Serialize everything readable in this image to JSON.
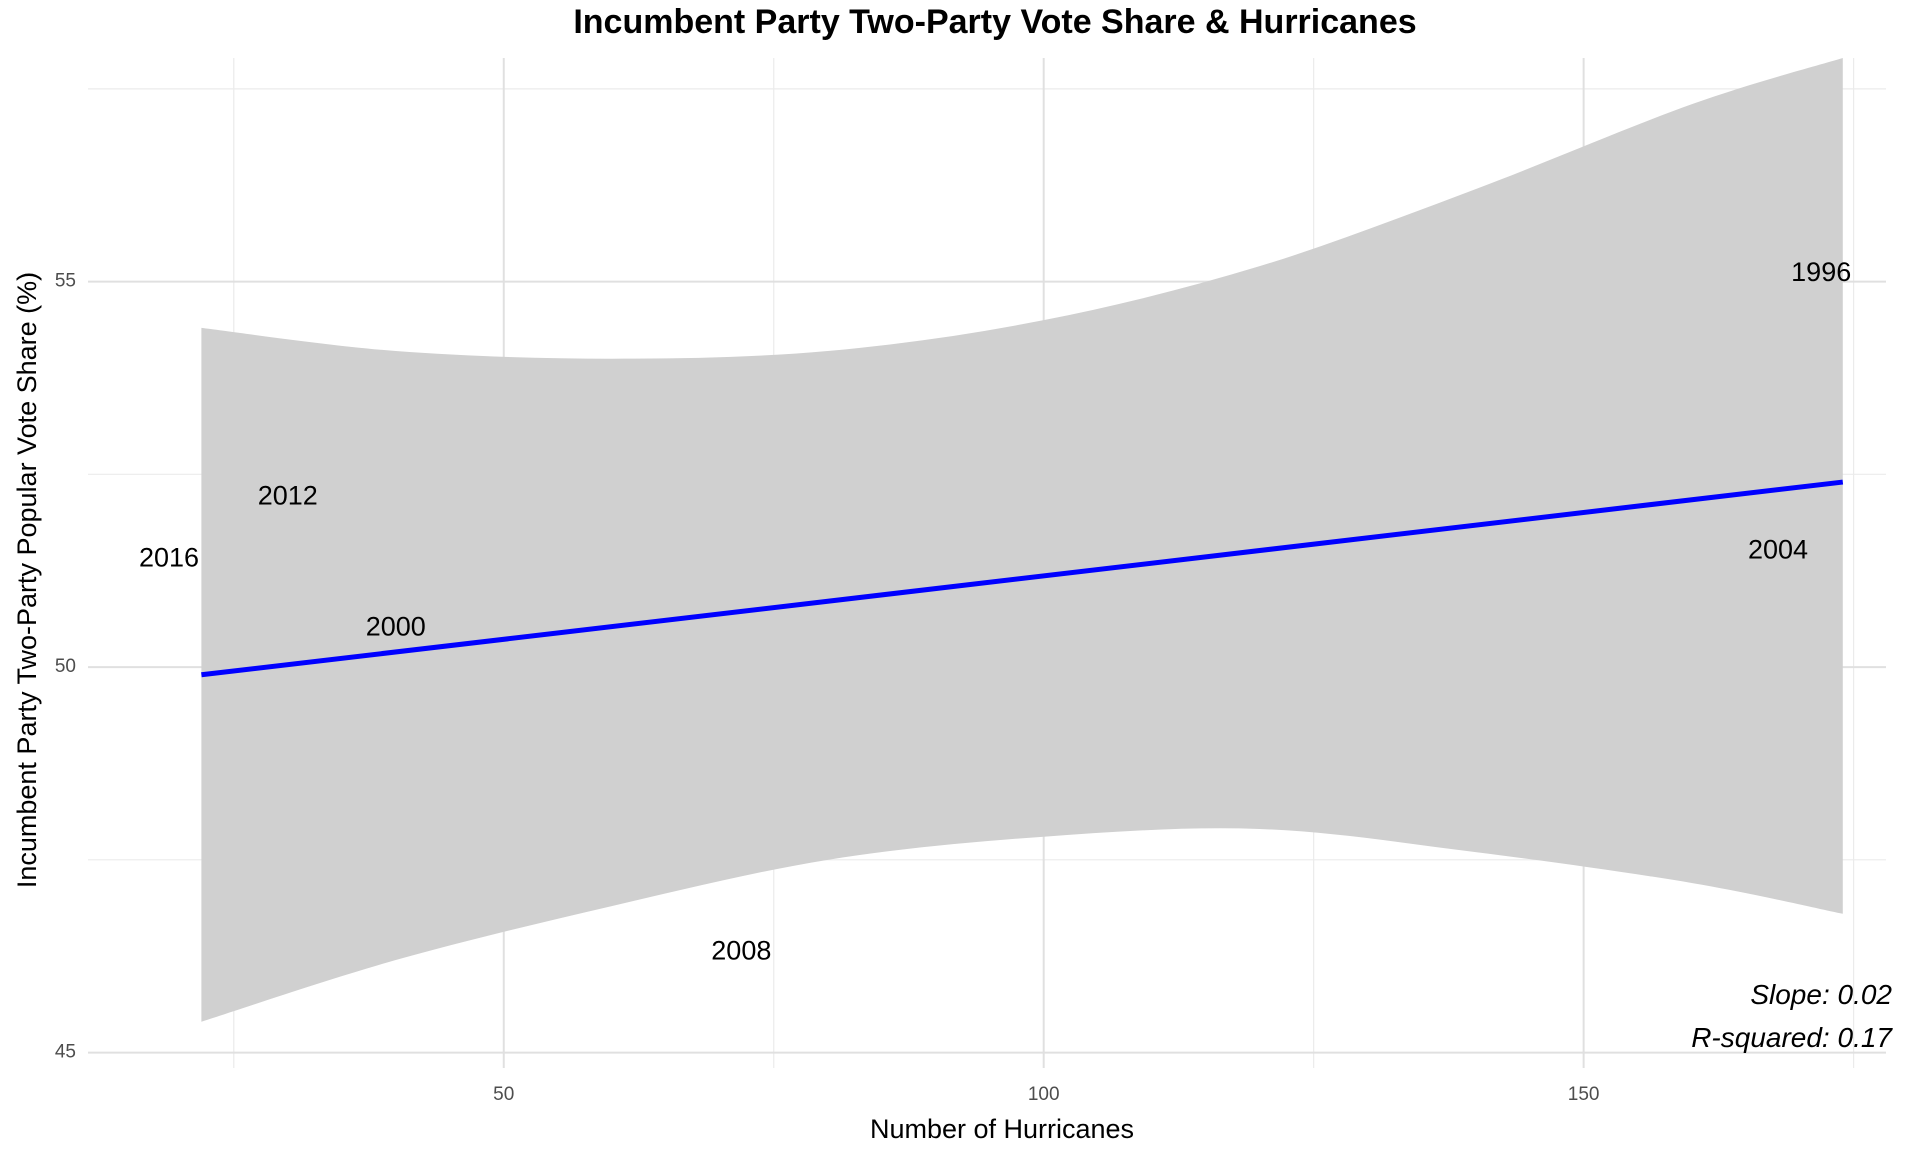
{
  "chart_data": {
    "type": "scatter",
    "title": "Incumbent Party Two-Party Vote Share & Hurricanes",
    "xlabel": "Number of Hurricanes",
    "ylabel": "Incumbent Party Two-Party Popular Vote Share (%)",
    "xlim": [
      11.5,
      178
    ],
    "ylim": [
      44.8,
      57.9
    ],
    "x_ticks": [
      50,
      100,
      150
    ],
    "x_minor_ticks": [
      25,
      75,
      125,
      175
    ],
    "y_ticks": [
      45,
      50,
      55
    ],
    "y_minor_ticks": [
      47.5,
      52.5,
      57.5
    ],
    "grid": true,
    "point_labels": [
      {
        "label": "1996",
        "x": 172,
        "y": 55.1
      },
      {
        "label": "2000",
        "x": 40,
        "y": 50.5
      },
      {
        "label": "2004",
        "x": 168,
        "y": 51.5
      },
      {
        "label": "2008",
        "x": 72,
        "y": 46.3
      },
      {
        "label": "2012",
        "x": 30,
        "y": 52.2
      },
      {
        "label": "2016",
        "x": 19,
        "y": 51.4
      }
    ],
    "regression": {
      "x_range": [
        22,
        174
      ],
      "y_start": 49.9,
      "y_end": 52.4,
      "line_color": "#0000ff",
      "ribbon_color": "#d0d0d0",
      "ribbon": [
        {
          "x": 22,
          "lower": 45.4,
          "upper": 54.4
        },
        {
          "x": 40,
          "lower": 46.2,
          "upper": 54.1
        },
        {
          "x": 60,
          "lower": 46.9,
          "upper": 54.0
        },
        {
          "x": 80,
          "lower": 47.5,
          "upper": 54.1
        },
        {
          "x": 100,
          "lower": 47.8,
          "upper": 54.5
        },
        {
          "x": 120,
          "lower": 47.9,
          "upper": 55.2
        },
        {
          "x": 140,
          "lower": 47.6,
          "upper": 56.2
        },
        {
          "x": 160,
          "lower": 47.2,
          "upper": 57.3
        },
        {
          "x": 174,
          "lower": 46.8,
          "upper": 57.9
        }
      ]
    },
    "annotations": [
      "Slope: 0.02",
      "R-squared: 0.17"
    ]
  }
}
